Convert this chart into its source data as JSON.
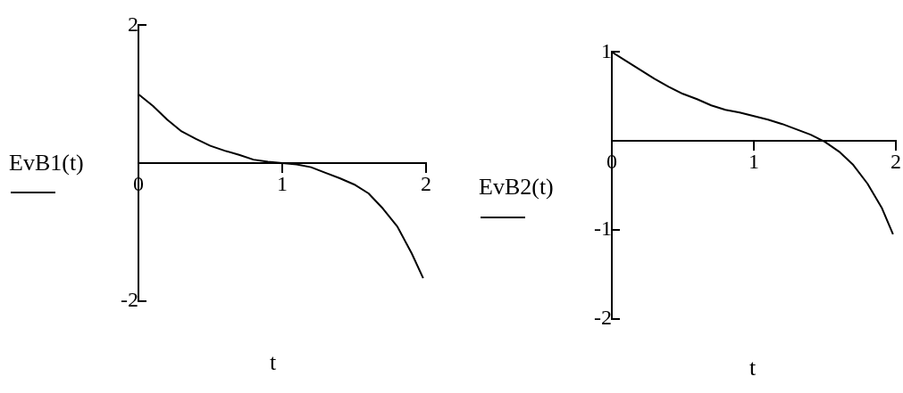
{
  "chart_data": [
    {
      "type": "line",
      "xlabel": "t",
      "ylabel": "EvB1(t)",
      "xlim": [
        0,
        2
      ],
      "ylim": [
        -2,
        2
      ],
      "xticks": [
        0,
        1,
        2
      ],
      "yticks": [
        -2,
        2
      ],
      "x": [
        0,
        0.1,
        0.2,
        0.3,
        0.4,
        0.5,
        0.6,
        0.7,
        0.8,
        0.9,
        1.0,
        1.1,
        1.2,
        1.3,
        1.4,
        1.5,
        1.6,
        1.7,
        1.8,
        1.9,
        1.98
      ],
      "series": [
        {
          "color": "#000000",
          "values": [
            1.0,
            0.83,
            0.63,
            0.46,
            0.35,
            0.25,
            0.18,
            0.12,
            0.05,
            0.02,
            0,
            -0.02,
            -0.06,
            -0.14,
            -0.22,
            -0.31,
            -0.44,
            -0.66,
            -0.92,
            -1.31,
            -1.67
          ]
        }
      ]
    },
    {
      "type": "line",
      "xlabel": "t",
      "ylabel": "EvB2(t)",
      "xlim": [
        0,
        2
      ],
      "ylim": [
        -2,
        1
      ],
      "xticks": [
        0,
        1,
        2
      ],
      "yticks": [
        -2,
        -1,
        1
      ],
      "x": [
        0,
        0.1,
        0.2,
        0.3,
        0.4,
        0.5,
        0.6,
        0.7,
        0.8,
        0.9,
        1.0,
        1.1,
        1.2,
        1.3,
        1.4,
        1.5,
        1.6,
        1.7,
        1.8,
        1.9,
        1.98
      ],
      "series": [
        {
          "color": "#000000",
          "values": [
            1.0,
            0.9,
            0.8,
            0.7,
            0.61,
            0.53,
            0.47,
            0.4,
            0.35,
            0.32,
            0.28,
            0.24,
            0.19,
            0.13,
            0.07,
            -0.01,
            -0.12,
            -0.27,
            -0.48,
            -0.75,
            -1.05
          ]
        }
      ]
    }
  ]
}
